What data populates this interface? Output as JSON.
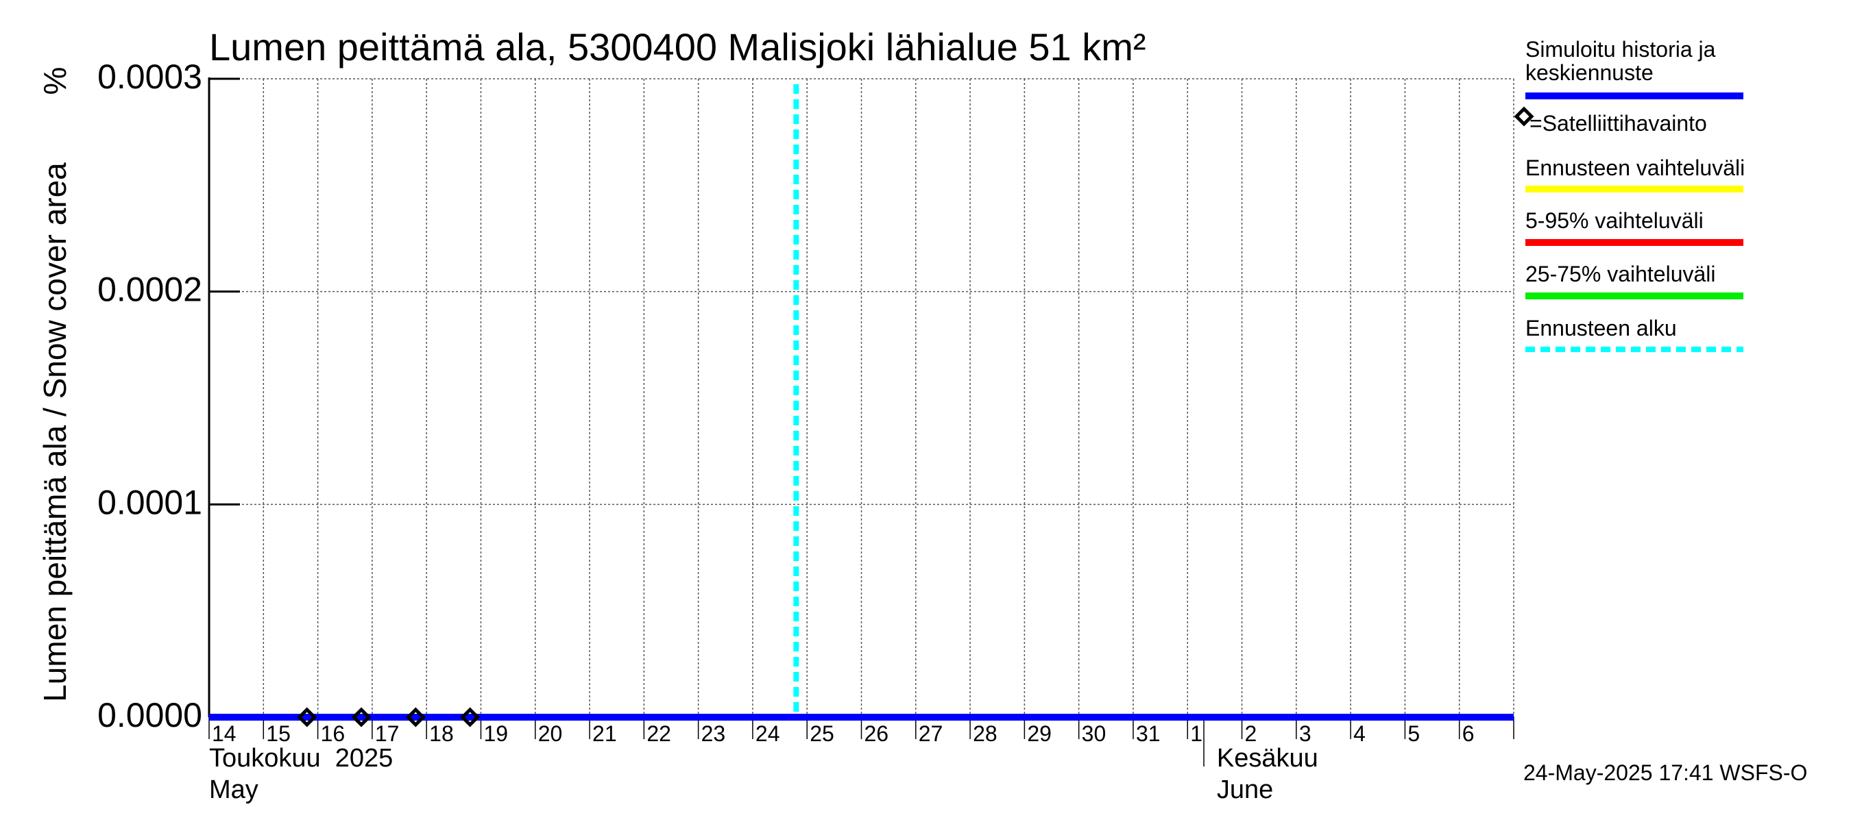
{
  "chart_data": {
    "type": "line",
    "title": "Lumen peittämä ala, 5300400 Malisjoki lähialue 51 km²",
    "ylabel": "Lumen peittämä ala / Snow cover area",
    "yunit": "%",
    "ylim": [
      0,
      0.0003
    ],
    "yticks": [
      "0.0000",
      "0.0001",
      "0.0002",
      "0.0003"
    ],
    "ytick_values": [
      0,
      0.0001,
      0.0002,
      0.0003
    ],
    "x_start": "2025-05-14",
    "x_days": 24,
    "xtick_labels": [
      "14",
      "15",
      "16",
      "17",
      "18",
      "19",
      "20",
      "21",
      "22",
      "23",
      "24",
      "25",
      "26",
      "27",
      "28",
      "29",
      "30",
      "31",
      "1",
      "2",
      "3",
      "4",
      "5",
      "6"
    ],
    "month_labels": [
      {
        "fi": "Toukokuu  2025",
        "en": "May",
        "day_index": 0
      },
      {
        "fi": "Kesäkuu",
        "en": "June",
        "day_index": 19
      }
    ],
    "series": [
      {
        "name": "Simuloitu historia ja keskiennuste",
        "color": "#0000ff",
        "x_start_day": 0,
        "x_end_day": 24,
        "values": [
          0,
          0
        ]
      }
    ],
    "observations": {
      "name": "=Satelliittihavainto",
      "points": [
        {
          "day": 2.0,
          "value": 0
        },
        {
          "day": 3.0,
          "value": 0
        },
        {
          "day": 4.0,
          "value": 0
        },
        {
          "day": 5.0,
          "value": 0
        }
      ]
    },
    "forecast_start_day": 10.0,
    "grid": true,
    "legend_position": "right"
  },
  "legend": {
    "items": [
      {
        "label": "Simuloitu historia ja\nkeskiennuste",
        "color": "#0000ff",
        "style": "solid"
      },
      {
        "label": "=Satelliittihavainto",
        "color": "#000000",
        "style": "marker"
      },
      {
        "label": "Ennusteen vaihteluväli",
        "color": "#ffff00",
        "style": "solid"
      },
      {
        "label": "5-95% vaihteluväli",
        "color": "#ff0000",
        "style": "solid"
      },
      {
        "label": "25-75% vaihteluväli",
        "color": "#00ee00",
        "style": "solid"
      },
      {
        "label": "Ennusteen alku",
        "color": "#00ffff",
        "style": "dashed"
      }
    ]
  },
  "footer": {
    "timestamp": "24-May-2025 17:41 WSFS-O"
  }
}
